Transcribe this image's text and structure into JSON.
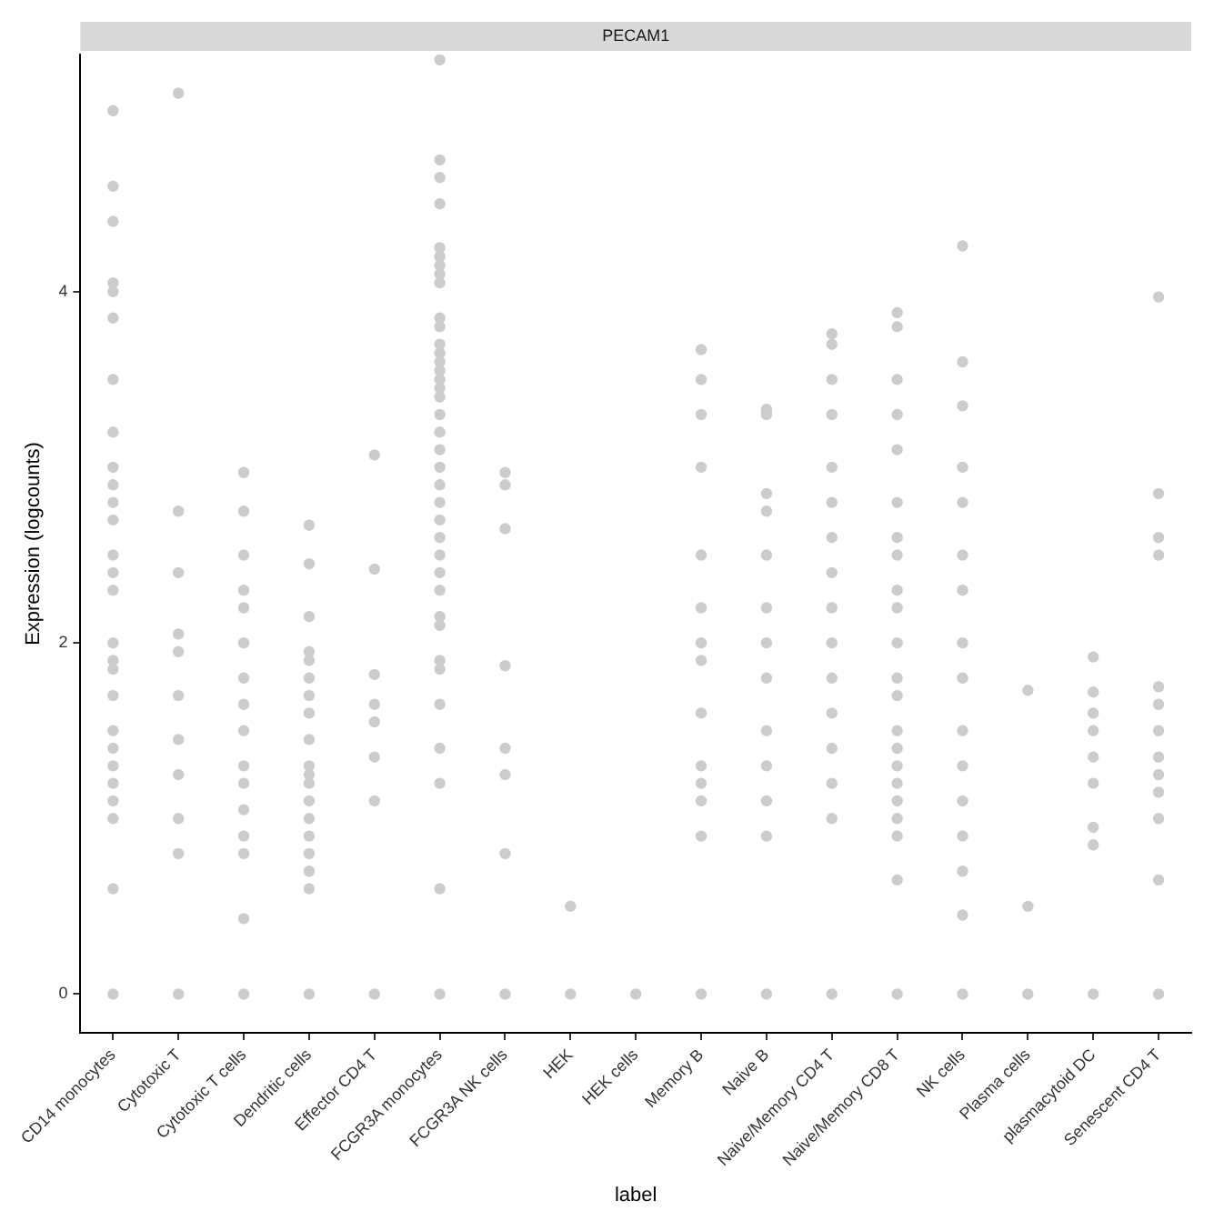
{
  "chart_data": {
    "type": "scatter",
    "title": "PECAM1",
    "xlabel": "label",
    "ylabel": "Expression (logcounts)",
    "categories": [
      "CD14 monocytes",
      "Cytotoxic T",
      "Cytotoxic T cells",
      "Dendritic cells",
      "Effector CD4 T",
      "FCGR3A monocytes",
      "FCGR3A NK cells",
      "HEK",
      "HEK cells",
      "Memory B",
      "Naive B",
      "Naive/Memory CD4 T",
      "Naive/Memory CD8 T",
      "NK cells",
      "Plasma cells",
      "plasmacytoid DC",
      "Senescent CD4 T"
    ],
    "ylim": [
      -0.22,
      5.35
    ],
    "yticks": [
      0,
      2,
      4
    ],
    "grid": false,
    "legend": false,
    "marker": "circle",
    "series": [
      {
        "color": "#cccccc",
        "x": [
          "CD14 monocytes",
          "CD14 monocytes",
          "CD14 monocytes",
          "CD14 monocytes",
          "CD14 monocytes",
          "CD14 monocytes",
          "CD14 monocytes",
          "CD14 monocytes",
          "CD14 monocytes",
          "CD14 monocytes",
          "CD14 monocytes",
          "CD14 monocytes",
          "CD14 monocytes",
          "CD14 monocytes",
          "CD14 monocytes",
          "CD14 monocytes",
          "CD14 monocytes",
          "CD14 monocytes",
          "CD14 monocytes",
          "CD14 monocytes",
          "CD14 monocytes",
          "CD14 monocytes",
          "CD14 monocytes",
          "CD14 monocytes",
          "CD14 monocytes",
          "CD14 monocytes",
          "CD14 monocytes"
        ],
        "values": [
          0,
          5.03,
          4.6,
          4.4,
          4.05,
          4.0,
          3.85,
          3.5,
          3.2,
          3.0,
          2.9,
          2.8,
          2.7,
          2.5,
          2.4,
          2.3,
          2.0,
          1.9,
          1.85,
          1.7,
          1.5,
          1.4,
          1.3,
          1.2,
          1.1,
          1.0,
          0.6
        ]
      },
      {
        "color": "#cccccc",
        "x": [
          "Cytotoxic T",
          "Cytotoxic T",
          "Cytotoxic T",
          "Cytotoxic T",
          "Cytotoxic T",
          "Cytotoxic T",
          "Cytotoxic T",
          "Cytotoxic T",
          "Cytotoxic T",
          "Cytotoxic T",
          "Cytotoxic T"
        ],
        "values": [
          0,
          5.13,
          2.75,
          2.4,
          2.05,
          1.95,
          1.7,
          1.45,
          1.25,
          1.0,
          0.8
        ]
      },
      {
        "color": "#cccccc",
        "x": [
          "Cytotoxic T cells",
          "Cytotoxic T cells",
          "Cytotoxic T cells",
          "Cytotoxic T cells",
          "Cytotoxic T cells",
          "Cytotoxic T cells",
          "Cytotoxic T cells",
          "Cytotoxic T cells",
          "Cytotoxic T cells",
          "Cytotoxic T cells",
          "Cytotoxic T cells",
          "Cytotoxic T cells",
          "Cytotoxic T cells",
          "Cytotoxic T cells",
          "Cytotoxic T cells",
          "Cytotoxic T cells"
        ],
        "values": [
          0,
          2.97,
          2.75,
          2.5,
          2.3,
          2.2,
          2.0,
          1.8,
          1.65,
          1.5,
          1.3,
          1.2,
          1.05,
          0.9,
          0.8,
          0.43
        ]
      },
      {
        "color": "#cccccc",
        "x": [
          "Dendritic cells",
          "Dendritic cells",
          "Dendritic cells",
          "Dendritic cells",
          "Dendritic cells",
          "Dendritic cells",
          "Dendritic cells",
          "Dendritic cells",
          "Dendritic cells",
          "Dendritic cells",
          "Dendritic cells",
          "Dendritic cells",
          "Dendritic cells",
          "Dendritic cells",
          "Dendritic cells",
          "Dendritic cells",
          "Dendritic cells",
          "Dendritic cells",
          "Dendritic cells"
        ],
        "values": [
          0,
          2.67,
          2.45,
          2.15,
          1.95,
          1.9,
          1.8,
          1.7,
          1.6,
          1.45,
          1.3,
          1.25,
          1.2,
          1.1,
          1.0,
          0.9,
          0.8,
          0.7,
          0.6
        ]
      },
      {
        "color": "#cccccc",
        "x": [
          "Effector CD4 T",
          "Effector CD4 T",
          "Effector CD4 T",
          "Effector CD4 T",
          "Effector CD4 T",
          "Effector CD4 T",
          "Effector CD4 T",
          "Effector CD4 T"
        ],
        "values": [
          0,
          3.07,
          2.42,
          1.82,
          1.65,
          1.55,
          1.35,
          1.1
        ]
      },
      {
        "color": "#cccccc",
        "x": [
          "FCGR3A monocytes",
          "FCGR3A monocytes",
          "FCGR3A monocytes",
          "FCGR3A monocytes",
          "FCGR3A monocytes",
          "FCGR3A monocytes",
          "FCGR3A monocytes",
          "FCGR3A monocytes",
          "FCGR3A monocytes",
          "FCGR3A monocytes",
          "FCGR3A monocytes",
          "FCGR3A monocytes",
          "FCGR3A monocytes",
          "FCGR3A monocytes",
          "FCGR3A monocytes",
          "FCGR3A monocytes",
          "FCGR3A monocytes",
          "FCGR3A monocytes",
          "FCGR3A monocytes",
          "FCGR3A monocytes",
          "FCGR3A monocytes",
          "FCGR3A monocytes",
          "FCGR3A monocytes",
          "FCGR3A monocytes",
          "FCGR3A monocytes",
          "FCGR3A monocytes",
          "FCGR3A monocytes",
          "FCGR3A monocytes",
          "FCGR3A monocytes",
          "FCGR3A monocytes",
          "FCGR3A monocytes",
          "FCGR3A monocytes",
          "FCGR3A monocytes",
          "FCGR3A monocytes",
          "FCGR3A monocytes",
          "FCGR3A monocytes",
          "FCGR3A monocytes",
          "FCGR3A monocytes"
        ],
        "values": [
          5.32,
          4.75,
          4.65,
          4.5,
          4.25,
          4.2,
          4.15,
          4.1,
          4.05,
          3.85,
          3.8,
          3.7,
          3.65,
          3.6,
          3.55,
          3.5,
          3.45,
          3.4,
          3.3,
          3.2,
          3.1,
          3.0,
          2.9,
          2.8,
          2.7,
          2.6,
          2.5,
          2.4,
          2.3,
          2.15,
          2.1,
          1.9,
          1.85,
          1.65,
          1.4,
          1.2,
          0.6,
          0
        ]
      },
      {
        "color": "#cccccc",
        "x": [
          "FCGR3A NK cells",
          "FCGR3A NK cells",
          "FCGR3A NK cells",
          "FCGR3A NK cells",
          "FCGR3A NK cells",
          "FCGR3A NK cells",
          "FCGR3A NK cells",
          "FCGR3A NK cells"
        ],
        "values": [
          0,
          2.97,
          2.9,
          2.65,
          1.87,
          1.4,
          1.25,
          0.8
        ]
      },
      {
        "color": "#cccccc",
        "x": [
          "HEK",
          "HEK",
          "HEK cells"
        ],
        "values": [
          0,
          0.5,
          0
        ]
      },
      {
        "color": "#cccccc",
        "x": [
          "Memory B",
          "Memory B",
          "Memory B",
          "Memory B",
          "Memory B",
          "Memory B",
          "Memory B",
          "Memory B",
          "Memory B",
          "Memory B",
          "Memory B",
          "Memory B",
          "Memory B",
          "Memory B"
        ],
        "values": [
          0,
          3.67,
          3.5,
          3.3,
          3.0,
          2.5,
          2.2,
          2.0,
          1.9,
          1.6,
          1.3,
          1.2,
          1.1,
          0.9
        ]
      },
      {
        "color": "#cccccc",
        "x": [
          "Naive B",
          "Naive B",
          "Naive B",
          "Naive B",
          "Naive B",
          "Naive B",
          "Naive B",
          "Naive B",
          "Naive B",
          "Naive B",
          "Naive B",
          "Naive B",
          "Naive B"
        ],
        "values": [
          0,
          3.33,
          3.3,
          2.85,
          2.75,
          2.5,
          2.2,
          2.0,
          1.8,
          1.5,
          1.3,
          1.1,
          0.9
        ]
      },
      {
        "color": "#cccccc",
        "x": [
          "Naive/Memory CD4 T",
          "Naive/Memory CD4 T",
          "Naive/Memory CD4 T",
          "Naive/Memory CD4 T",
          "Naive/Memory CD4 T",
          "Naive/Memory CD4 T",
          "Naive/Memory CD4 T",
          "Naive/Memory CD4 T",
          "Naive/Memory CD4 T",
          "Naive/Memory CD4 T",
          "Naive/Memory CD4 T",
          "Naive/Memory CD4 T",
          "Naive/Memory CD4 T",
          "Naive/Memory CD4 T",
          "Naive/Memory CD4 T",
          "Naive/Memory CD4 T"
        ],
        "values": [
          0,
          3.76,
          3.7,
          3.5,
          3.3,
          3.0,
          2.8,
          2.6,
          2.4,
          2.2,
          2.0,
          1.8,
          1.6,
          1.4,
          1.2,
          1.0
        ]
      },
      {
        "color": "#cccccc",
        "x": [
          "Naive/Memory CD8 T",
          "Naive/Memory CD8 T",
          "Naive/Memory CD8 T",
          "Naive/Memory CD8 T",
          "Naive/Memory CD8 T",
          "Naive/Memory CD8 T",
          "Naive/Memory CD8 T",
          "Naive/Memory CD8 T",
          "Naive/Memory CD8 T",
          "Naive/Memory CD8 T",
          "Naive/Memory CD8 T",
          "Naive/Memory CD8 T",
          "Naive/Memory CD8 T",
          "Naive/Memory CD8 T",
          "Naive/Memory CD8 T",
          "Naive/Memory CD8 T",
          "Naive/Memory CD8 T",
          "Naive/Memory CD8 T",
          "Naive/Memory CD8 T",
          "Naive/Memory CD8 T",
          "Naive/Memory CD8 T",
          "Naive/Memory CD8 T"
        ],
        "values": [
          0,
          3.88,
          3.8,
          3.5,
          3.3,
          3.1,
          2.8,
          2.6,
          2.5,
          2.3,
          2.2,
          2.0,
          1.8,
          1.7,
          1.5,
          1.4,
          1.3,
          1.2,
          1.1,
          1.0,
          0.9,
          0.65
        ]
      },
      {
        "color": "#cccccc",
        "x": [
          "NK cells",
          "NK cells",
          "NK cells",
          "NK cells",
          "NK cells",
          "NK cells",
          "NK cells",
          "NK cells",
          "NK cells",
          "NK cells",
          "NK cells",
          "NK cells",
          "NK cells",
          "NK cells",
          "NK cells",
          "NK cells"
        ],
        "values": [
          0,
          4.26,
          3.6,
          3.35,
          3.0,
          2.8,
          2.5,
          2.3,
          2.0,
          1.8,
          1.5,
          1.3,
          1.1,
          0.9,
          0.7,
          0.45
        ]
      },
      {
        "color": "#cccccc",
        "x": [
          "Plasma cells",
          "Plasma cells",
          "Plasma cells"
        ],
        "values": [
          0,
          1.73,
          0.5
        ]
      },
      {
        "color": "#cccccc",
        "x": [
          "plasmacytoid DC",
          "plasmacytoid DC",
          "plasmacytoid DC",
          "plasmacytoid DC",
          "plasmacytoid DC",
          "plasmacytoid DC",
          "plasmacytoid DC",
          "plasmacytoid DC",
          "plasmacytoid DC"
        ],
        "values": [
          0,
          1.92,
          1.72,
          1.6,
          1.5,
          1.35,
          1.2,
          0.95,
          0.85
        ]
      },
      {
        "color": "#cccccc",
        "x": [
          "Senescent CD4 T",
          "Senescent CD4 T",
          "Senescent CD4 T",
          "Senescent CD4 T",
          "Senescent CD4 T",
          "Senescent CD4 T",
          "Senescent CD4 T",
          "Senescent CD4 T",
          "Senescent CD4 T",
          "Senescent CD4 T",
          "Senescent CD4 T",
          "Senescent CD4 T",
          "Senescent CD4 T"
        ],
        "values": [
          0,
          3.97,
          2.85,
          2.6,
          2.5,
          1.75,
          1.65,
          1.5,
          1.35,
          1.25,
          1.15,
          1.0,
          0.65
        ]
      }
    ]
  }
}
